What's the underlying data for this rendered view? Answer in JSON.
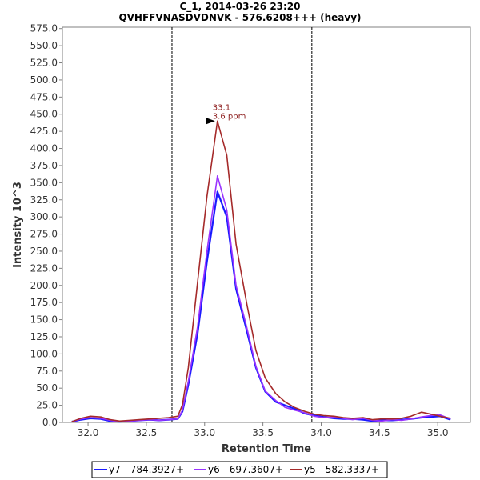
{
  "chart_data": {
    "type": "line",
    "title": "C_1, 2014-03-26 23:20",
    "subtitle": "QVHFFVNASDVDNVK - 576.6208+++ (heavy)",
    "xlabel": "Retention Time",
    "ylabel": "Intensity 10^3",
    "xlim": [
      31.78,
      35.28
    ],
    "ylim": [
      0,
      577
    ],
    "x_ticks": [
      "32.0",
      "32.5",
      "33.0",
      "33.5",
      "34.0",
      "34.5",
      "35.0"
    ],
    "y_ticks": [
      "0.0",
      "25.0",
      "50.0",
      "75.0",
      "100.0",
      "125.0",
      "150.0",
      "175.0",
      "200.0",
      "225.0",
      "250.0",
      "275.0",
      "300.0",
      "325.0",
      "350.0",
      "375.0",
      "400.0",
      "425.0",
      "450.0",
      "475.0",
      "500.0",
      "525.0",
      "550.0",
      "575.0"
    ],
    "boundaries": [
      32.72,
      33.92
    ],
    "x": [
      31.86,
      31.94,
      32.02,
      32.11,
      32.19,
      32.27,
      32.36,
      32.44,
      32.53,
      32.61,
      32.69,
      32.77,
      32.81,
      32.86,
      32.94,
      33.02,
      33.11,
      33.19,
      33.27,
      33.36,
      33.44,
      33.52,
      33.61,
      33.69,
      33.77,
      33.86,
      33.94,
      34.02,
      34.11,
      34.19,
      34.27,
      34.36,
      34.44,
      34.52,
      34.61,
      34.69,
      34.77,
      34.86,
      34.94,
      35.02,
      35.11
    ],
    "series": [
      {
        "name": "y7 - 784.3927+",
        "color": "#1a1aff",
        "values": [
          1,
          4,
          6,
          5,
          2,
          1,
          2,
          3,
          4,
          3,
          4,
          5,
          16,
          55,
          130,
          235,
          337,
          300,
          195,
          135,
          80,
          45,
          30,
          25,
          20,
          13,
          10,
          8,
          6,
          5,
          5,
          4,
          2,
          3,
          3,
          4,
          5,
          7,
          8,
          9,
          4
        ]
      },
      {
        "name": "y6 - 697.3607+",
        "color": "#9933ff",
        "values": [
          1,
          5,
          7,
          6,
          3,
          1,
          2,
          3,
          4,
          3,
          4,
          5,
          18,
          60,
          140,
          250,
          360,
          310,
          200,
          140,
          82,
          46,
          32,
          22,
          18,
          14,
          9,
          7,
          8,
          6,
          4,
          6,
          3,
          2,
          4,
          3,
          5,
          8,
          10,
          11,
          5
        ]
      },
      {
        "name": "y5 - 582.3337+",
        "color": "#a52a2a",
        "values": [
          1,
          6,
          9,
          8,
          4,
          2,
          3,
          4,
          5,
          6,
          7,
          9,
          26,
          80,
          205,
          330,
          440,
          390,
          260,
          175,
          105,
          65,
          42,
          30,
          22,
          16,
          12,
          10,
          9,
          7,
          6,
          7,
          4,
          5,
          5,
          6,
          9,
          15,
          12,
          9,
          6
        ]
      }
    ],
    "annotation": {
      "retention_time": "33.1",
      "mass_error": "3.6 ppm",
      "x": 33.11,
      "y": 440
    }
  }
}
